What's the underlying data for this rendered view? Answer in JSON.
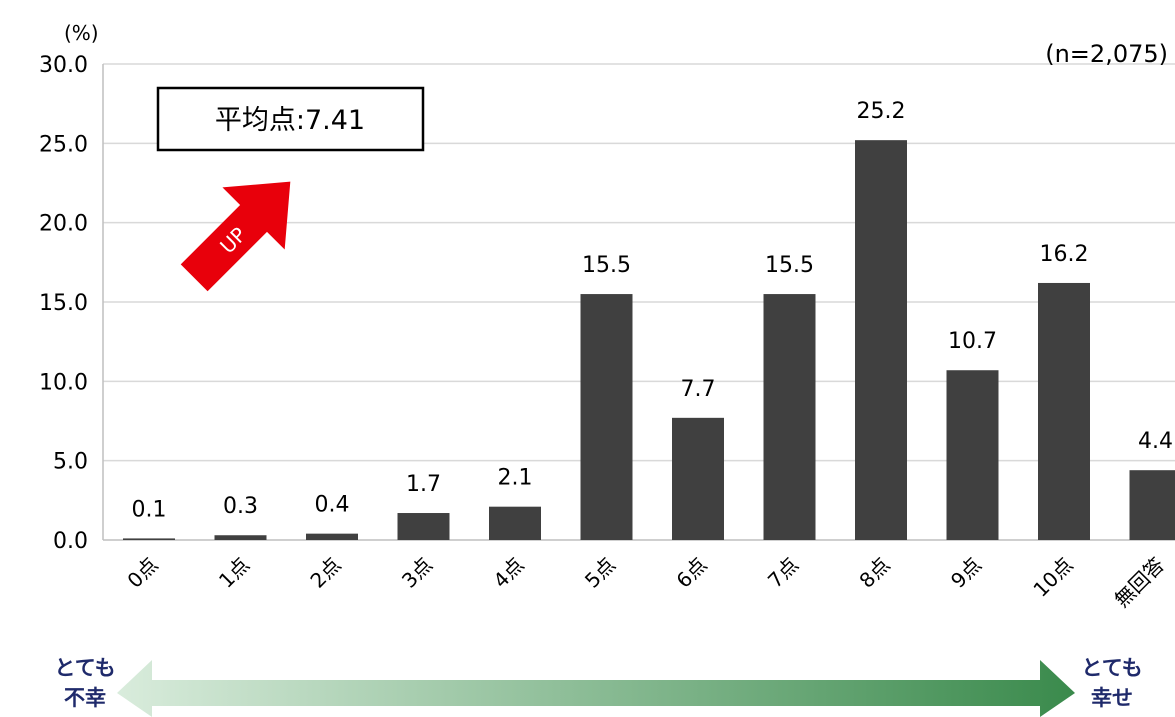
{
  "chart_data": {
    "type": "bar",
    "unit_label": "(%)",
    "n_label": "(n=2,075)",
    "categories": [
      "0点",
      "1点",
      "2点",
      "3点",
      "4点",
      "5点",
      "6点",
      "7点",
      "8点",
      "9点",
      "10点",
      "無回答"
    ],
    "values": [
      0.1,
      0.3,
      0.4,
      1.7,
      2.1,
      15.5,
      7.7,
      15.5,
      25.2,
      10.7,
      16.2,
      4.4
    ],
    "data_labels": [
      "0.1",
      "0.3",
      "0.4",
      "1.7",
      "2.1",
      "15.5",
      "7.7",
      "15.5",
      "25.2",
      "10.7",
      "16.2",
      "4.4"
    ],
    "ylim": [
      0,
      30
    ],
    "yticks": [
      "0.0",
      "5.0",
      "10.0",
      "15.0",
      "20.0",
      "25.0",
      "30.0"
    ],
    "grid": true,
    "bar_color": "#404040"
  },
  "annotations": {
    "average_label": "平均点",
    "average_separator": ":",
    "average_value": "7.41",
    "up_arrow_text": "UP",
    "up_arrow_color": "#e8000b",
    "scale_left_line1": "とても",
    "scale_left_line2": "不幸",
    "scale_right_line1": "とても",
    "scale_right_line2": "幸せ",
    "scale_gradient_start": "#d9ecdc",
    "scale_gradient_end": "#3a8a4c",
    "label_color": "#1f2a6b"
  }
}
